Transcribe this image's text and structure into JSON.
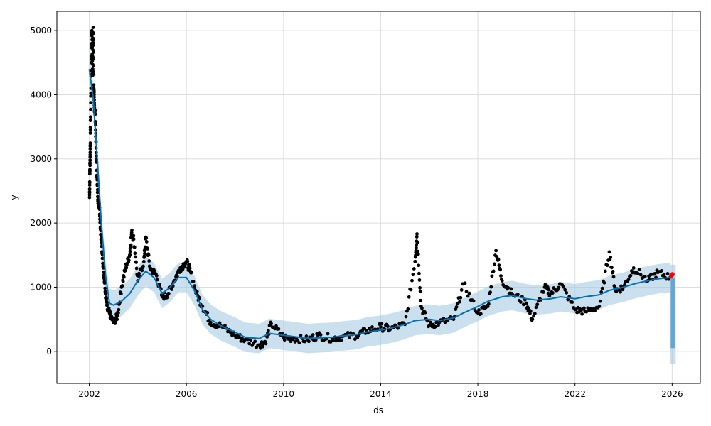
{
  "chart_data": {
    "type": "scatter",
    "xlabel": "ds",
    "ylabel": "y",
    "x_ticks": [
      "2002",
      "2006",
      "2010",
      "2014",
      "2018",
      "2022",
      "2026"
    ],
    "y_ticks": [
      "0",
      "1000",
      "2000",
      "3000",
      "4000",
      "5000"
    ],
    "xlim": [
      "2000-09-01",
      "2027-03-01"
    ],
    "ylim": [
      -500,
      5300
    ],
    "grid": true,
    "legend": "none",
    "colors": {
      "observed": "#000000",
      "forecast": "#0072B2",
      "uncertainty_band": "#A6CBE3",
      "highlight": "#FF0000"
    },
    "series": [
      {
        "role": "forecast",
        "points": [
          [
            "2002-01-01",
            4400
          ],
          [
            "2002-03-01",
            3950
          ],
          [
            "2002-05-01",
            3000
          ],
          [
            "2002-07-01",
            2000
          ],
          [
            "2002-09-01",
            1200
          ],
          [
            "2002-11-01",
            750
          ],
          [
            "2003-01-01",
            720
          ],
          [
            "2003-05-01",
            780
          ],
          [
            "2003-09-01",
            900
          ],
          [
            "2004-01-01",
            1100
          ],
          [
            "2004-05-01",
            1250
          ],
          [
            "2004-09-01",
            1150
          ],
          [
            "2005-01-01",
            900
          ],
          [
            "2005-05-01",
            1000
          ],
          [
            "2005-09-01",
            1150
          ],
          [
            "2006-01-01",
            1150
          ],
          [
            "2006-05-01",
            950
          ],
          [
            "2006-09-01",
            650
          ],
          [
            "2007-01-01",
            500
          ],
          [
            "2007-06-01",
            400
          ],
          [
            "2008-01-01",
            300
          ],
          [
            "2008-06-01",
            220
          ],
          [
            "2009-01-01",
            200
          ],
          [
            "2009-06-01",
            280
          ],
          [
            "2010-01-01",
            250
          ],
          [
            "2010-06-01",
            230
          ],
          [
            "2011-01-01",
            200
          ],
          [
            "2011-06-01",
            210
          ],
          [
            "2012-01-01",
            220
          ],
          [
            "2012-06-01",
            240
          ],
          [
            "2013-01-01",
            260
          ],
          [
            "2013-06-01",
            300
          ],
          [
            "2014-01-01",
            330
          ],
          [
            "2014-06-01",
            360
          ],
          [
            "2015-01-01",
            420
          ],
          [
            "2015-06-01",
            480
          ],
          [
            "2016-01-01",
            500
          ],
          [
            "2016-06-01",
            480
          ],
          [
            "2017-01-01",
            520
          ],
          [
            "2017-06-01",
            600
          ],
          [
            "2018-01-01",
            700
          ],
          [
            "2018-06-01",
            780
          ],
          [
            "2019-01-01",
            850
          ],
          [
            "2019-06-01",
            870
          ],
          [
            "2020-01-01",
            820
          ],
          [
            "2020-06-01",
            800
          ],
          [
            "2021-01-01",
            820
          ],
          [
            "2021-06-01",
            850
          ],
          [
            "2022-01-01",
            820
          ],
          [
            "2022-06-01",
            850
          ],
          [
            "2023-01-01",
            880
          ],
          [
            "2023-06-01",
            950
          ],
          [
            "2024-01-01",
            1000
          ],
          [
            "2024-06-01",
            1050
          ],
          [
            "2025-01-01",
            1100
          ],
          [
            "2025-06-01",
            1130
          ],
          [
            "2025-12-01",
            1150
          ]
        ]
      },
      {
        "role": "observed",
        "points": [
          [
            "2002-01-05",
            2400
          ],
          [
            "2002-01-10",
            2800
          ],
          [
            "2002-01-15",
            3100
          ],
          [
            "2002-01-20",
            3600
          ],
          [
            "2002-02-01",
            4500
          ],
          [
            "2002-02-10",
            5000
          ],
          [
            "2002-02-20",
            4300
          ],
          [
            "2002-03-01",
            5050
          ],
          [
            "2002-03-10",
            4100
          ],
          [
            "2002-03-20",
            3800
          ],
          [
            "2002-04-01",
            3700
          ],
          [
            "2002-04-15",
            3100
          ],
          [
            "2002-05-01",
            2600
          ],
          [
            "2002-05-15",
            2300
          ],
          [
            "2002-06-01",
            2300
          ],
          [
            "2002-06-15",
            2000
          ],
          [
            "2002-07-01",
            1700
          ],
          [
            "2002-08-01",
            1300
          ],
          [
            "2002-09-01",
            900
          ],
          [
            "2002-10-01",
            650
          ],
          [
            "2002-11-01",
            600
          ],
          [
            "2003-01-01",
            450
          ],
          [
            "2003-03-01",
            550
          ],
          [
            "2003-05-01",
            1000
          ],
          [
            "2003-07-01",
            1300
          ],
          [
            "2003-09-01",
            1500
          ],
          [
            "2003-10-01",
            1850
          ],
          [
            "2003-11-01",
            1750
          ],
          [
            "2004-01-01",
            1100
          ],
          [
            "2004-04-01",
            1400
          ],
          [
            "2004-05-01",
            1780
          ],
          [
            "2004-07-01",
            1300
          ],
          [
            "2004-10-01",
            1200
          ],
          [
            "2005-01-01",
            850
          ],
          [
            "2005-04-01",
            900
          ],
          [
            "2005-07-01",
            1100
          ],
          [
            "2005-10-01",
            1300
          ],
          [
            "2006-01-01",
            1400
          ],
          [
            "2006-03-01",
            1250
          ],
          [
            "2006-06-01",
            900
          ],
          [
            "2006-09-01",
            700
          ],
          [
            "2007-01-01",
            450
          ],
          [
            "2007-06-01",
            400
          ],
          [
            "2008-01-01",
            250
          ],
          [
            "2008-06-01",
            180
          ],
          [
            "2009-01-01",
            100
          ],
          [
            "2009-04-01",
            150
          ],
          [
            "2009-07-01",
            430
          ],
          [
            "2010-01-01",
            220
          ],
          [
            "2010-06-01",
            200
          ],
          [
            "2011-01-01",
            180
          ],
          [
            "2011-06-01",
            250
          ],
          [
            "2012-01-01",
            200
          ],
          [
            "2012-06-01",
            230
          ],
          [
            "2013-01-01",
            250
          ],
          [
            "2013-06-01",
            320
          ],
          [
            "2014-01-01",
            380
          ],
          [
            "2014-06-01",
            350
          ],
          [
            "2015-01-01",
            420
          ],
          [
            "2015-06-01",
            1400
          ],
          [
            "2015-07-01",
            1830
          ],
          [
            "2015-09-01",
            700
          ],
          [
            "2016-01-01",
            400
          ],
          [
            "2016-06-01",
            450
          ],
          [
            "2017-01-01",
            500
          ],
          [
            "2017-06-01",
            1050
          ],
          [
            "2018-01-01",
            600
          ],
          [
            "2018-06-01",
            700
          ],
          [
            "2018-10-01",
            1570
          ],
          [
            "2019-01-01",
            1100
          ],
          [
            "2019-06-01",
            900
          ],
          [
            "2020-01-01",
            750
          ],
          [
            "2020-04-01",
            500
          ],
          [
            "2020-10-01",
            1000
          ],
          [
            "2021-01-01",
            900
          ],
          [
            "2021-06-01",
            1050
          ],
          [
            "2022-01-01",
            650
          ],
          [
            "2022-06-01",
            620
          ],
          [
            "2023-01-01",
            700
          ],
          [
            "2023-06-01",
            1550
          ],
          [
            "2023-09-01",
            950
          ],
          [
            "2024-01-01",
            1000
          ],
          [
            "2024-06-01",
            1300
          ],
          [
            "2025-01-01",
            1100
          ],
          [
            "2025-06-01",
            1230
          ],
          [
            "2025-12-01",
            1150
          ]
        ]
      },
      {
        "role": "highlight",
        "points": [
          [
            "2025-12-20",
            1180
          ],
          [
            "2026-01-05",
            1200
          ]
        ]
      }
    ]
  }
}
